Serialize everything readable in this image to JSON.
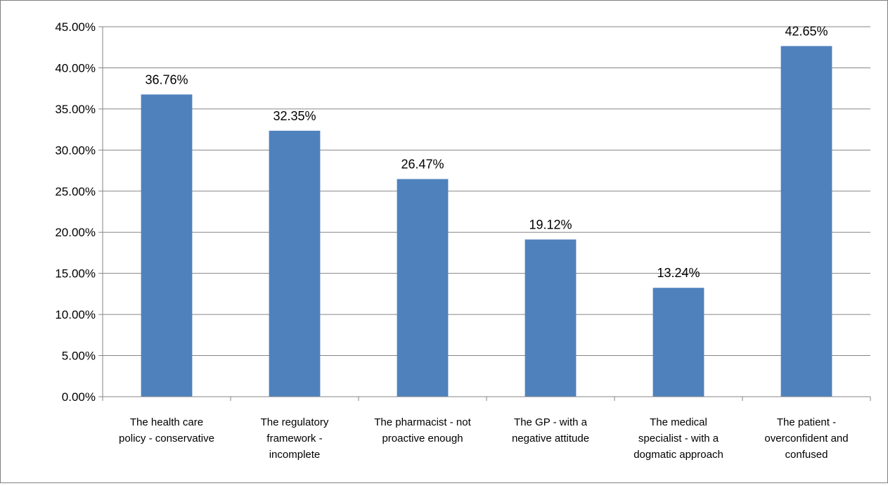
{
  "chart_data": {
    "type": "bar",
    "categories": [
      [
        "The health care",
        "policy - conservative"
      ],
      [
        "The regulatory",
        "framework -",
        "incomplete"
      ],
      [
        "The pharmacist - not",
        "proactive enough"
      ],
      [
        "The GP - with a",
        "negative attitude"
      ],
      [
        "The medical",
        "specialist - with a",
        "dogmatic approach"
      ],
      [
        "The patient -",
        "overconfident and",
        "confused"
      ]
    ],
    "values": [
      36.76,
      32.35,
      26.47,
      19.12,
      13.24,
      42.65
    ],
    "data_labels": [
      "36.76%",
      "32.35%",
      "26.47%",
      "19.12%",
      "13.24%",
      "42.65%"
    ],
    "yticks": [
      "0.00%",
      "5.00%",
      "10.00%",
      "15.00%",
      "20.00%",
      "25.00%",
      "30.00%",
      "35.00%",
      "40.00%",
      "45.00%"
    ],
    "ylim": [
      0,
      45
    ],
    "grid": true,
    "legend": "none",
    "title": "",
    "xlabel": "",
    "ylabel": "",
    "colors": {
      "bar": "#4f81bd",
      "grid": "#868686",
      "axis": "#868686"
    }
  }
}
